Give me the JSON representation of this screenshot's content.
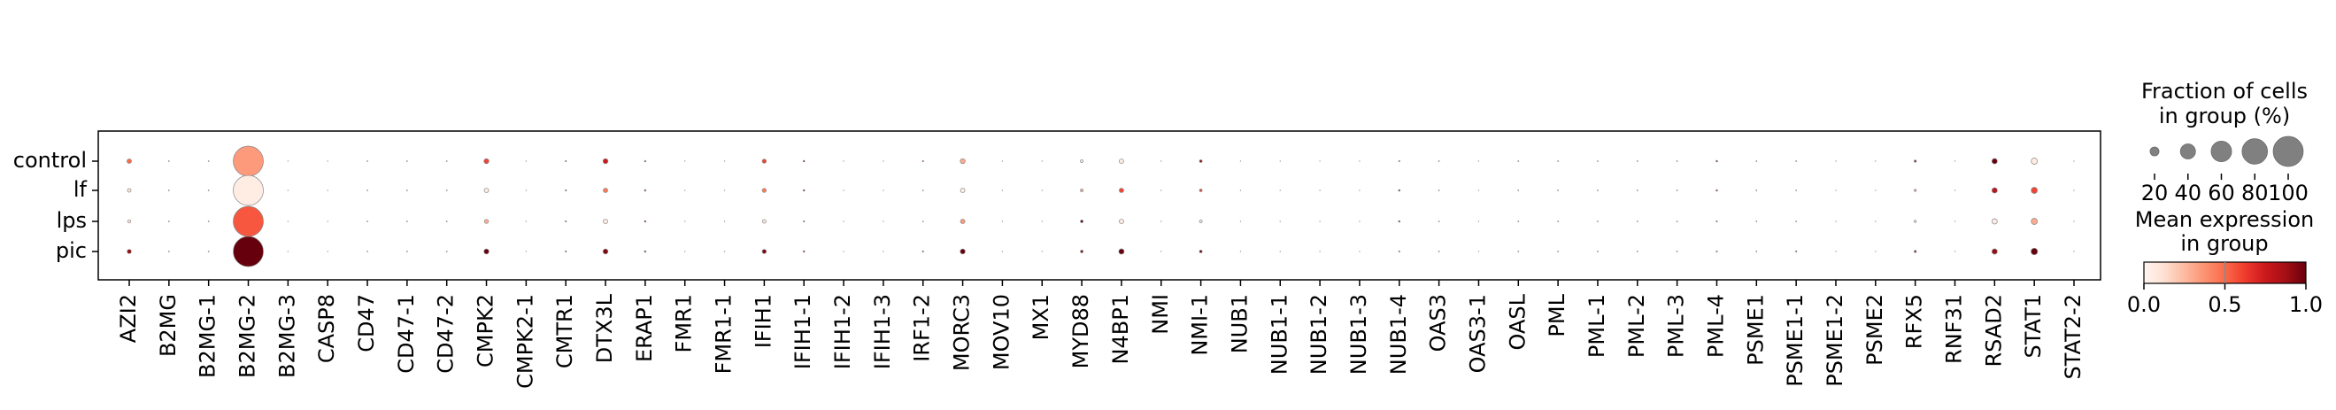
{
  "chart_data": {
    "type": "dotplot",
    "categories": [
      "AZI2",
      "B2MG",
      "B2MG-1",
      "B2MG-2",
      "B2MG-3",
      "CASP8",
      "CD47",
      "CD47-1",
      "CD47-2",
      "CMPK2",
      "CMPK2-1",
      "CMTR1",
      "DTX3L",
      "ERAP1",
      "FMR1",
      "FMR1-1",
      "IFIH1",
      "IFIH1-1",
      "IFIH1-2",
      "IFIH1-3",
      "IRF1-2",
      "MORC3",
      "MOV10",
      "MX1",
      "MYD88",
      "N4BP1",
      "NMI",
      "NMI-1",
      "NUB1",
      "NUB1-1",
      "NUB1-2",
      "NUB1-3",
      "NUB1-4",
      "OAS3",
      "OAS3-1",
      "OASL",
      "PML",
      "PML-1",
      "PML-2",
      "PML-3",
      "PML-4",
      "PSME1",
      "PSME1-1",
      "PSME1-2",
      "PSME2",
      "RFX5",
      "RNF31",
      "RSAD2",
      "STAT1",
      "STAT2-2"
    ],
    "series": [
      {
        "name": "control",
        "values": [
          0.5,
          0.3,
          0.3,
          0.35,
          0,
          0.3,
          0.3,
          0.3,
          0.3,
          0.6,
          0.3,
          0.5,
          0.75,
          0.4,
          0.3,
          0.3,
          0.6,
          0.9,
          0.3,
          0.3,
          0.6,
          0.3,
          0.3,
          0.3,
          0.05,
          0.05,
          0.3,
          0.9,
          0.3,
          0.3,
          0.3,
          0.3,
          0.4,
          0.5,
          0.3,
          0.3,
          0.4,
          0.4,
          0.4,
          0.4,
          1.0,
          0.5,
          0.4,
          0.3,
          0.3,
          0.9,
          0.3,
          1.0,
          0.05,
          0.3
        ],
        "fractions": [
          8,
          1,
          1,
          100,
          0.5,
          0.5,
          1,
          1,
          1,
          9,
          0.5,
          1.5,
          9,
          2,
          0.5,
          0.5,
          7,
          2,
          0.5,
          0.5,
          1.5,
          9,
          0.5,
          0.5,
          4,
          8,
          0.5,
          4,
          0.5,
          0.5,
          0.5,
          0.5,
          1.5,
          1,
          0.5,
          1,
          1,
          1,
          1,
          1,
          2,
          1,
          1,
          0.5,
          0.5,
          3,
          0.5,
          10,
          12,
          0.5
        ]
      },
      {
        "name": "lf",
        "values": [
          0.1,
          0.3,
          0.3,
          0.05,
          0,
          0.3,
          0.3,
          0.3,
          0.3,
          0.05,
          0.3,
          0.9,
          0.45,
          0.9,
          0.3,
          0.3,
          0.45,
          0.9,
          0.3,
          0.3,
          0.3,
          0.05,
          0.3,
          0.3,
          0.3,
          0.6,
          0.3,
          0.6,
          0.3,
          0.3,
          0.3,
          0.3,
          1.0,
          0.5,
          0.3,
          0.3,
          0.4,
          0.4,
          0.4,
          0.4,
          0.9,
          0.5,
          0.4,
          0.3,
          0.3,
          0.3,
          0.3,
          0.8,
          0.6,
          0.3
        ],
        "fractions": [
          6,
          1,
          1,
          100,
          0.5,
          0.5,
          1,
          1,
          1,
          8,
          0.5,
          1.5,
          8,
          2,
          0.5,
          0.5,
          7,
          2,
          0.5,
          0.5,
          1,
          8,
          0.5,
          0.5,
          4,
          8,
          0.5,
          4,
          0.5,
          0.5,
          0.5,
          0.5,
          2,
          1,
          0.5,
          1,
          1,
          1,
          1,
          1,
          2,
          1,
          1,
          0.5,
          0.5,
          3,
          0.5,
          10,
          12,
          0.5
        ]
      },
      {
        "name": "lps",
        "values": [
          0.1,
          0.3,
          0.3,
          0.55,
          0,
          0.3,
          0.3,
          0.3,
          0.3,
          0.3,
          0.3,
          0.7,
          0.05,
          0.8,
          0.3,
          0.3,
          0.1,
          0.7,
          0.3,
          0.3,
          0.3,
          0.35,
          0.3,
          0.3,
          1.0,
          0.05,
          0.3,
          0.05,
          0.3,
          0.3,
          0.3,
          0.3,
          0.9,
          0.5,
          0.3,
          0.3,
          0.4,
          0.4,
          0.4,
          0.4,
          0.6,
          0.5,
          0.4,
          0.3,
          0.3,
          0.05,
          0.3,
          0.05,
          0.3,
          0.3
        ],
        "fractions": [
          5,
          1,
          1,
          100,
          0.5,
          0.5,
          1,
          1,
          1,
          7,
          0.5,
          1.5,
          8,
          2,
          0.5,
          0.5,
          6,
          1.5,
          0.5,
          0.5,
          1,
          8,
          0.5,
          0.5,
          4,
          8,
          0.5,
          4,
          0.5,
          0.5,
          0.5,
          0.5,
          2,
          1,
          0.5,
          1,
          1,
          1,
          1,
          1,
          1.5,
          1,
          1,
          0.5,
          0.5,
          3,
          0.5,
          10,
          12,
          0.5
        ]
      },
      {
        "name": "pic",
        "values": [
          0.9,
          0.3,
          0.3,
          1.0,
          0,
          0.3,
          0.3,
          0.3,
          0.3,
          1.0,
          0.3,
          0.9,
          0.95,
          0.9,
          0.3,
          0.3,
          0.95,
          0.8,
          0.3,
          0.3,
          0.9,
          1.0,
          0.3,
          0.3,
          0.9,
          1.0,
          0.3,
          1.0,
          0.3,
          0.3,
          0.3,
          0.3,
          0.5,
          0.5,
          0.3,
          0.3,
          0.4,
          0.4,
          0.4,
          0.4,
          0.6,
          0.5,
          0.8,
          0.3,
          0.3,
          0.9,
          0.3,
          0.9,
          1.0,
          0.3
        ],
        "fractions": [
          7,
          1,
          1,
          100,
          0.5,
          0.5,
          1,
          1,
          1,
          9,
          0.5,
          1.5,
          9,
          2,
          0.5,
          0.5,
          7,
          2,
          0.5,
          0.5,
          1.5,
          9,
          0.5,
          0.5,
          4,
          10,
          0.5,
          4,
          0.5,
          0.5,
          0.5,
          0.5,
          1.5,
          1,
          0.5,
          1,
          1,
          1,
          1,
          1,
          1.5,
          1,
          1.5,
          0.5,
          0.5,
          3,
          0.5,
          10,
          13,
          0.5
        ]
      }
    ],
    "size_legend": {
      "title": [
        "Fraction of cells",
        "in group (%)"
      ],
      "lim": [
        0,
        100
      ],
      "ticks": [
        20,
        40,
        60,
        80,
        100
      ]
    },
    "color_legend": {
      "title": [
        "Mean expression",
        "in group"
      ],
      "lim": [
        0,
        1
      ],
      "ticks": [
        {
          "value": 0,
          "label": "0.0"
        },
        {
          "value": 0.5,
          "label": "0.5"
        },
        {
          "value": 1,
          "label": "1.0"
        }
      ],
      "colormap": [
        "#fff5f0",
        "#fee0d2",
        "#fcbba1",
        "#fc9272",
        "#fb6a4a",
        "#ef3b2c",
        "#cb181d",
        "#a50f15",
        "#67000d"
      ]
    }
  }
}
